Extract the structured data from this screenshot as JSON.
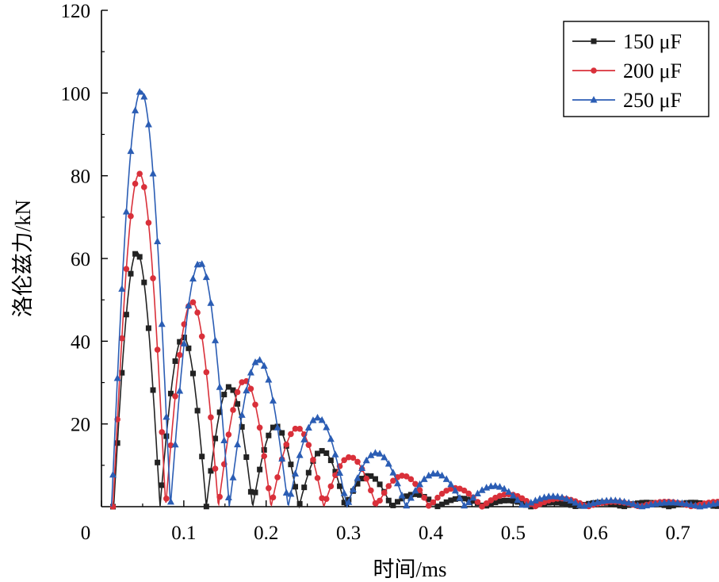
{
  "chart_data": {
    "type": "line",
    "title": "",
    "xlabel": "时间/ms",
    "ylabel": "洛伦兹力/kN",
    "xlim": [
      0,
      0.75
    ],
    "ylim": [
      0,
      120
    ],
    "xticks": [
      "0",
      "0.1",
      "0.2",
      "0.3",
      "0.4",
      "0.5",
      "0.6",
      "0.7"
    ],
    "yticks": [
      "20",
      "40",
      "60",
      "80",
      "100",
      "120"
    ],
    "grid": false,
    "legend_position": "top-right",
    "series": [
      {
        "name": "150 μF",
        "color": "#222222",
        "marker": "square",
        "period_ms": 0.1125,
        "first_peak_ms": 0.043,
        "peaks_kN": [
          61.5,
          41,
          29,
          19.5,
          13.5,
          7.5,
          3,
          2,
          1.5,
          1
        ],
        "end_ms": 0.75
      },
      {
        "name": "200 μF",
        "color": "#d9303a",
        "marker": "circle",
        "period_ms": 0.128,
        "first_peak_ms": 0.046,
        "peaks_kN": [
          80.5,
          49.5,
          30.5,
          19,
          12,
          7.5,
          4.5,
          3,
          2,
          1.2
        ],
        "end_ms": 0.75
      },
      {
        "name": "250 μF",
        "color": "#2b5db4",
        "marker": "triangle",
        "period_ms": 0.143,
        "first_peak_ms": 0.048,
        "peaks_kN": [
          100.5,
          59,
          35.5,
          21.5,
          13,
          8,
          5,
          2.5,
          1.5,
          1
        ],
        "end_ms": 0.75
      }
    ]
  }
}
